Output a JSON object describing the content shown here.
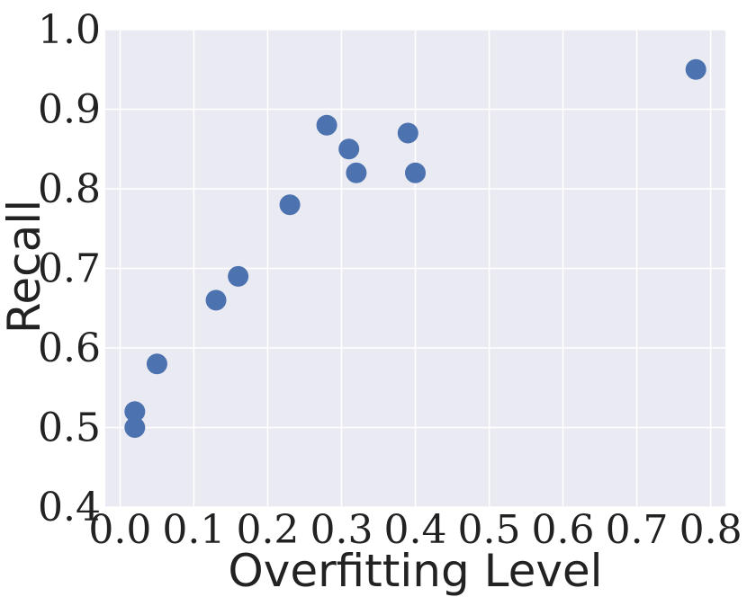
{
  "chart_data": {
    "type": "scatter",
    "title": "",
    "xlabel": "Overfitting Level",
    "ylabel": "Recall",
    "xlim": [
      -0.02,
      0.82
    ],
    "ylim": [
      0.4,
      1.0
    ],
    "grid": true,
    "x_ticks": [
      "0.0",
      "0.1",
      "0.2",
      "0.3",
      "0.4",
      "0.5",
      "0.6",
      "0.7",
      "0.8"
    ],
    "y_ticks": [
      "0.4",
      "0.5",
      "0.6",
      "0.7",
      "0.8",
      "0.9",
      "1.0"
    ],
    "marker_color": "#4c72b0",
    "background_color": "#eaeaf2",
    "points": [
      {
        "x": 0.02,
        "y": 0.52
      },
      {
        "x": 0.02,
        "y": 0.5
      },
      {
        "x": 0.05,
        "y": 0.58
      },
      {
        "x": 0.13,
        "y": 0.66
      },
      {
        "x": 0.16,
        "y": 0.69
      },
      {
        "x": 0.23,
        "y": 0.78
      },
      {
        "x": 0.28,
        "y": 0.88
      },
      {
        "x": 0.31,
        "y": 0.85
      },
      {
        "x": 0.32,
        "y": 0.82
      },
      {
        "x": 0.39,
        "y": 0.87
      },
      {
        "x": 0.4,
        "y": 0.82
      },
      {
        "x": 0.78,
        "y": 0.95
      }
    ]
  }
}
